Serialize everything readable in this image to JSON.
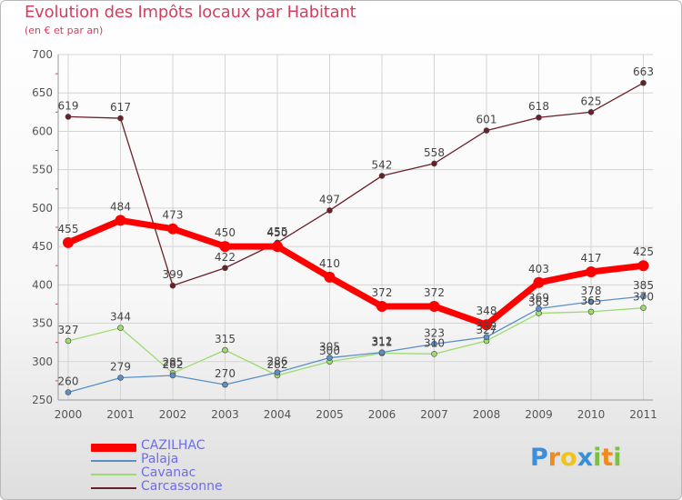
{
  "chart_data": {
    "type": "line",
    "title": "Evolution des Impôts locaux par Habitant",
    "subtitle": "(en € et par an)",
    "categories": [
      "2000",
      "2001",
      "2002",
      "2003",
      "2004",
      "2005",
      "2006",
      "2007",
      "2008",
      "2009",
      "2010",
      "2011"
    ],
    "ylim": [
      250,
      700
    ],
    "yticks": [
      250,
      300,
      350,
      400,
      450,
      500,
      550,
      600,
      650,
      700
    ],
    "grid": true,
    "legend_position": "bottom-left",
    "series": [
      {
        "name": "Carcassonne",
        "color": "#6b2029",
        "values": [
          619,
          617,
          399,
          422,
          455,
          497,
          542,
          558,
          601,
          618,
          625,
          663
        ]
      },
      {
        "name": "Cavanac",
        "color": "#9ddb6e",
        "values": [
          327,
          344,
          285,
          315,
          282,
          300,
          311,
          310,
          327,
          363,
          365,
          370
        ]
      },
      {
        "name": "Palaja",
        "color": "#5b8fc6",
        "values": [
          260,
          279,
          282,
          270,
          286,
          305,
          312,
          323,
          332,
          369,
          378,
          385
        ]
      },
      {
        "name": "CAZILHAC",
        "color": "#ff0000",
        "values": [
          455,
          484,
          473,
          450,
          450,
          410,
          372,
          372,
          348,
          403,
          417,
          425
        ]
      }
    ]
  },
  "legend": [
    {
      "name": "CAZILHAC",
      "color": "#ff0000"
    },
    {
      "name": "Palaja",
      "color": "#5b8fc6"
    },
    {
      "name": "Cavanac",
      "color": "#9ddb6e"
    },
    {
      "name": "Carcassonne",
      "color": "#6b2029"
    }
  ],
  "logo": {
    "letters": [
      "P",
      "r",
      "o",
      "x",
      "i",
      "t",
      "i"
    ],
    "colors": [
      "#3b8fd8",
      "#f08a1c",
      "#f0c419",
      "#3b8fd8",
      "#7bc043",
      "#f08a1c",
      "#7bc043"
    ]
  }
}
